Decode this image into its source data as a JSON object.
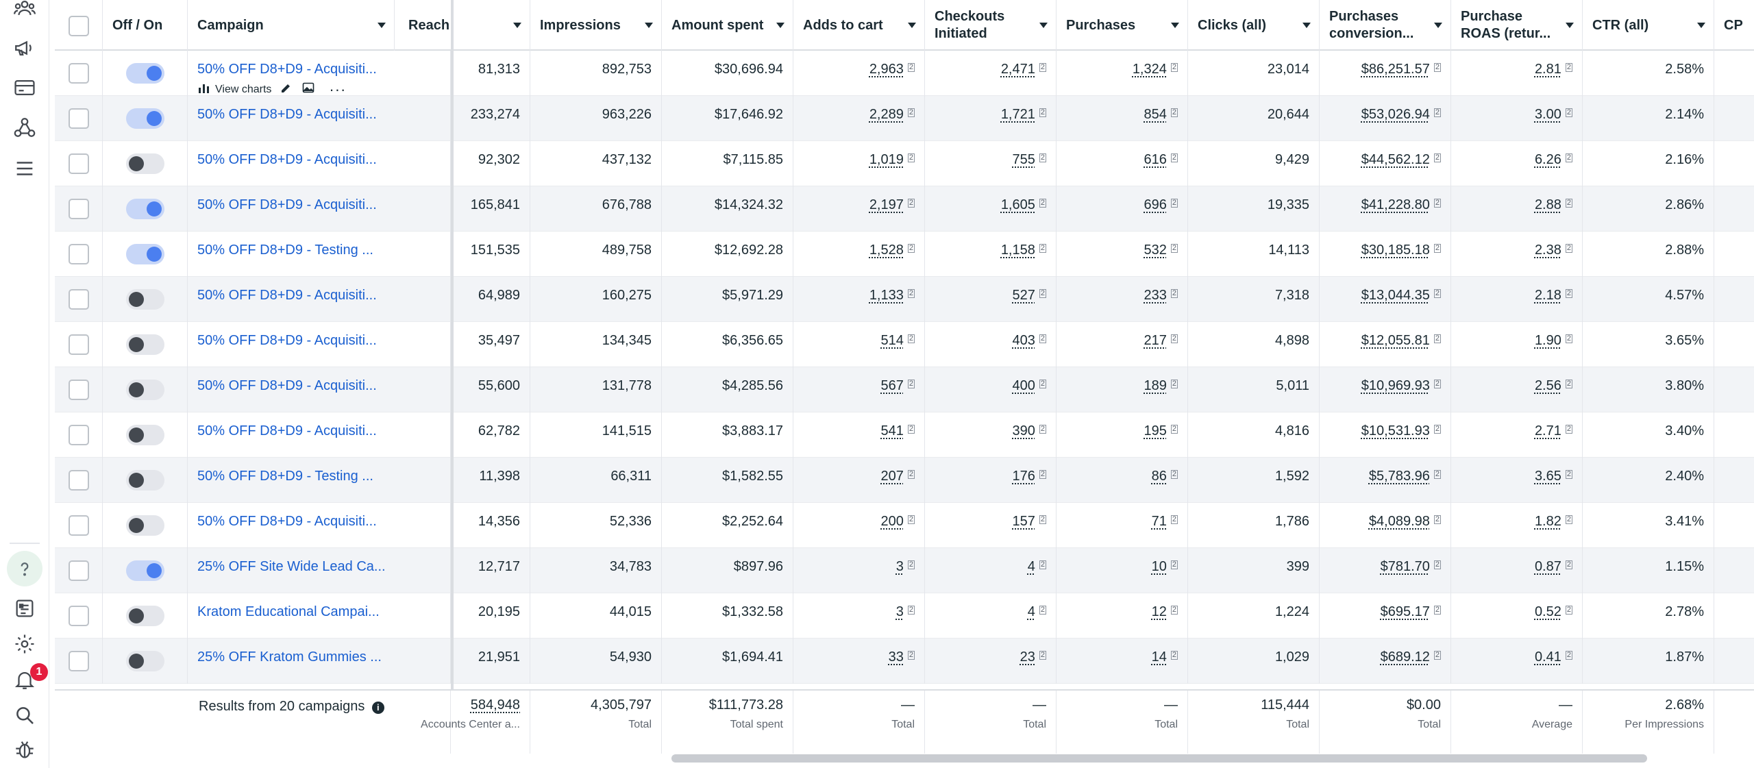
{
  "rail": {
    "icons": [
      "people-icon",
      "megaphone-icon",
      "billing-card-icon",
      "network-icon",
      "menu-icon"
    ],
    "bottom_icons": [
      "help-icon",
      "pages-icon",
      "gear-icon",
      "bell-icon",
      "search-icon",
      "bug-icon"
    ],
    "notification_count": "1"
  },
  "header": {
    "off_on": "Off / On",
    "campaign": "Campaign",
    "reach": "Reach",
    "impressions": "Impressions",
    "amount_spent": "Amount spent",
    "adds_to_cart": "Adds to cart",
    "checkouts_initiated": "Checkouts Initiated",
    "purchases": "Purchases",
    "clicks_all": "Clicks (all)",
    "purchases_conversion": "Purchases conversion...",
    "purchase_roas": "Purchase ROAS (retur...",
    "ctr_all": "CTR (all)",
    "cp": "CP"
  },
  "row_tools": {
    "view_charts": "View charts"
  },
  "rows": [
    {
      "on": true,
      "campaign": "50% OFF D8+D9 - Acquisiti...",
      "reach": "81,313",
      "impressions": "892,753",
      "spent": "$30,696.94",
      "atc": "2,963",
      "checkouts": "2,471",
      "purchases": "1,324",
      "clicks": "23,014",
      "conv": "$86,251.57",
      "roas": "2.81",
      "ctr": "2.58%"
    },
    {
      "on": true,
      "campaign": "50% OFF D8+D9 - Acquisiti...",
      "reach": "233,274",
      "impressions": "963,226",
      "spent": "$17,646.92",
      "atc": "2,289",
      "checkouts": "1,721",
      "purchases": "854",
      "clicks": "20,644",
      "conv": "$53,026.94",
      "roas": "3.00",
      "ctr": "2.14%"
    },
    {
      "on": false,
      "campaign": "50% OFF D8+D9 - Acquisiti...",
      "reach": "92,302",
      "impressions": "437,132",
      "spent": "$7,115.85",
      "atc": "1,019",
      "checkouts": "755",
      "purchases": "616",
      "clicks": "9,429",
      "conv": "$44,562.12",
      "roas": "6.26",
      "ctr": "2.16%"
    },
    {
      "on": true,
      "campaign": "50% OFF D8+D9 - Acquisiti...",
      "reach": "165,841",
      "impressions": "676,788",
      "spent": "$14,324.32",
      "atc": "2,197",
      "checkouts": "1,605",
      "purchases": "696",
      "clicks": "19,335",
      "conv": "$41,228.80",
      "roas": "2.88",
      "ctr": "2.86%"
    },
    {
      "on": true,
      "campaign": "50% OFF D8+D9 - Testing ...",
      "reach": "151,535",
      "impressions": "489,758",
      "spent": "$12,692.28",
      "atc": "1,528",
      "checkouts": "1,158",
      "purchases": "532",
      "clicks": "14,113",
      "conv": "$30,185.18",
      "roas": "2.38",
      "ctr": "2.88%"
    },
    {
      "on": false,
      "campaign": "50% OFF D8+D9 - Acquisiti...",
      "reach": "64,989",
      "impressions": "160,275",
      "spent": "$5,971.29",
      "atc": "1,133",
      "checkouts": "527",
      "purchases": "233",
      "clicks": "7,318",
      "conv": "$13,044.35",
      "roas": "2.18",
      "ctr": "4.57%"
    },
    {
      "on": false,
      "campaign": "50% OFF D8+D9 - Acquisiti...",
      "reach": "35,497",
      "impressions": "134,345",
      "spent": "$6,356.65",
      "atc": "514",
      "checkouts": "403",
      "purchases": "217",
      "clicks": "4,898",
      "conv": "$12,055.81",
      "roas": "1.90",
      "ctr": "3.65%"
    },
    {
      "on": false,
      "campaign": "50% OFF D8+D9 - Acquisiti...",
      "reach": "55,600",
      "impressions": "131,778",
      "spent": "$4,285.56",
      "atc": "567",
      "checkouts": "400",
      "purchases": "189",
      "clicks": "5,011",
      "conv": "$10,969.93",
      "roas": "2.56",
      "ctr": "3.80%"
    },
    {
      "on": false,
      "campaign": "50% OFF D8+D9 - Acquisiti...",
      "reach": "62,782",
      "impressions": "141,515",
      "spent": "$3,883.17",
      "atc": "541",
      "checkouts": "390",
      "purchases": "195",
      "clicks": "4,816",
      "conv": "$10,531.93",
      "roas": "2.71",
      "ctr": "3.40%"
    },
    {
      "on": false,
      "campaign": "50% OFF D8+D9 - Testing ...",
      "reach": "11,398",
      "impressions": "66,311",
      "spent": "$1,582.55",
      "atc": "207",
      "checkouts": "176",
      "purchases": "86",
      "clicks": "1,592",
      "conv": "$5,783.96",
      "roas": "3.65",
      "ctr": "2.40%"
    },
    {
      "on": false,
      "campaign": "50% OFF D8+D9 - Acquisiti...",
      "reach": "14,356",
      "impressions": "52,336",
      "spent": "$2,252.64",
      "atc": "200",
      "checkouts": "157",
      "purchases": "71",
      "clicks": "1,786",
      "conv": "$4,089.98",
      "roas": "1.82",
      "ctr": "3.41%"
    },
    {
      "on": true,
      "campaign": "25% OFF Site Wide Lead Ca...",
      "reach": "12,717",
      "impressions": "34,783",
      "spent": "$897.96",
      "atc": "3",
      "checkouts": "4",
      "purchases": "10",
      "clicks": "399",
      "conv": "$781.70",
      "roas": "0.87",
      "ctr": "1.15%"
    },
    {
      "on": false,
      "campaign": "Kratom Educational Campai...",
      "reach": "20,195",
      "impressions": "44,015",
      "spent": "$1,332.58",
      "atc": "3",
      "checkouts": "4",
      "purchases": "12",
      "clicks": "1,224",
      "conv": "$695.17",
      "roas": "0.52",
      "ctr": "2.78%"
    },
    {
      "on": false,
      "campaign": "25% OFF Kratom Gummies ...",
      "reach": "21,951",
      "impressions": "54,930",
      "spent": "$1,694.41",
      "atc": "33",
      "checkouts": "23",
      "purchases": "14",
      "clicks": "1,029",
      "conv": "$689.12",
      "roas": "0.41",
      "ctr": "1.87%"
    }
  ],
  "footer": {
    "results_label": "Results from 20 campaigns",
    "reach_value": "584,948",
    "reach_label": "Accounts Center a...",
    "impressions_value": "4,305,797",
    "impressions_label": "Total",
    "spent_value": "$111,773.28",
    "spent_label": "Total spent",
    "atc_value": "—",
    "atc_label": "Total",
    "checkouts_value": "—",
    "checkouts_label": "Total",
    "purchases_value": "—",
    "purchases_label": "Total",
    "clicks_value": "115,444",
    "clicks_label": "Total",
    "conv_value": "$0.00",
    "conv_label": "Total",
    "roas_value": "—",
    "roas_label": "Average",
    "ctr_value": "2.68%",
    "ctr_label": "Per Impressions"
  },
  "colors": {
    "link": "#1a5fd0",
    "toggle_on": "#4b7ff0",
    "badge": "#e41e3f",
    "row_alt": "#f2f4f7"
  }
}
